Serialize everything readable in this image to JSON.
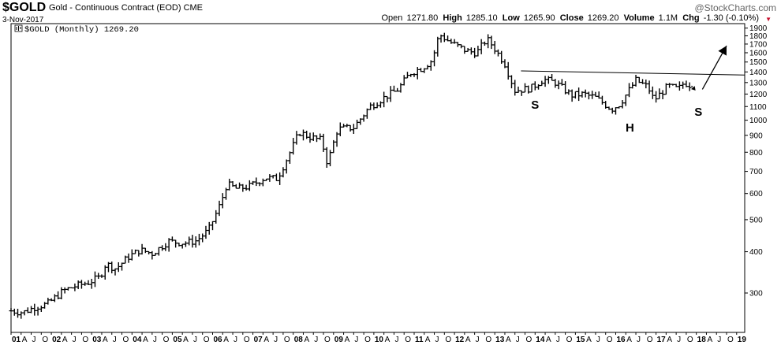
{
  "header": {
    "symbol": "$GOLD",
    "description": "Gold - Continuous Contract (EOD)",
    "exchange": "CME",
    "date": "3-Nov-2017",
    "brand": "@StockCharts.com",
    "open_label": "Open",
    "open": "1271.80",
    "high_label": "High",
    "high": "1285.10",
    "low_label": "Low",
    "low": "1265.90",
    "close_label": "Close",
    "close": "1269.20",
    "volume_label": "Volume",
    "volume": "1.1M",
    "chg_label": "Chg",
    "chg": "-1.30 (-0.10%)",
    "chg_arrow_color": "#c8102e"
  },
  "chart_data": {
    "type": "ohlc",
    "legend": "$GOLD (Monthly) 1269.20",
    "scale": "log",
    "ylim": [
      228,
      1960
    ],
    "yticks": [
      300,
      400,
      500,
      600,
      700,
      800,
      900,
      1000,
      1100,
      1200,
      1300,
      1400,
      1500,
      1600,
      1700,
      1800,
      1900
    ],
    "xlim": [
      2001.0,
      2019.2
    ],
    "x_tick_labels": [
      {
        "x": 2001.0,
        "label": "01"
      },
      {
        "x": 2001.25,
        "label": "A"
      },
      {
        "x": 2001.5,
        "label": "J"
      },
      {
        "x": 2001.75,
        "label": "O"
      },
      {
        "x": 2002.0,
        "label": "02"
      },
      {
        "x": 2002.25,
        "label": "A"
      },
      {
        "x": 2002.5,
        "label": "J"
      },
      {
        "x": 2002.75,
        "label": "O"
      },
      {
        "x": 2003.0,
        "label": "03"
      },
      {
        "x": 2003.25,
        "label": "A"
      },
      {
        "x": 2003.5,
        "label": "J"
      },
      {
        "x": 2003.75,
        "label": "O"
      },
      {
        "x": 2004.0,
        "label": "04"
      },
      {
        "x": 2004.25,
        "label": "A"
      },
      {
        "x": 2004.5,
        "label": "J"
      },
      {
        "x": 2004.75,
        "label": "O"
      },
      {
        "x": 2005.0,
        "label": "05"
      },
      {
        "x": 2005.25,
        "label": "A"
      },
      {
        "x": 2005.5,
        "label": "J"
      },
      {
        "x": 2005.75,
        "label": "O"
      },
      {
        "x": 2006.0,
        "label": "06"
      },
      {
        "x": 2006.25,
        "label": "A"
      },
      {
        "x": 2006.5,
        "label": "J"
      },
      {
        "x": 2006.75,
        "label": "O"
      },
      {
        "x": 2007.0,
        "label": "07"
      },
      {
        "x": 2007.25,
        "label": "A"
      },
      {
        "x": 2007.5,
        "label": "J"
      },
      {
        "x": 2007.75,
        "label": "O"
      },
      {
        "x": 2008.0,
        "label": "08"
      },
      {
        "x": 2008.25,
        "label": "A"
      },
      {
        "x": 2008.5,
        "label": "J"
      },
      {
        "x": 2008.75,
        "label": "O"
      },
      {
        "x": 2009.0,
        "label": "09"
      },
      {
        "x": 2009.25,
        "label": "A"
      },
      {
        "x": 2009.5,
        "label": "J"
      },
      {
        "x": 2009.75,
        "label": "O"
      },
      {
        "x": 2010.0,
        "label": "10"
      },
      {
        "x": 2010.25,
        "label": "A"
      },
      {
        "x": 2010.5,
        "label": "J"
      },
      {
        "x": 2010.75,
        "label": "O"
      },
      {
        "x": 2011.0,
        "label": "11"
      },
      {
        "x": 2011.25,
        "label": "A"
      },
      {
        "x": 2011.5,
        "label": "J"
      },
      {
        "x": 2011.75,
        "label": "O"
      },
      {
        "x": 2012.0,
        "label": "12"
      },
      {
        "x": 2012.25,
        "label": "A"
      },
      {
        "x": 2012.5,
        "label": "J"
      },
      {
        "x": 2012.75,
        "label": "O"
      },
      {
        "x": 2013.0,
        "label": "13"
      },
      {
        "x": 2013.25,
        "label": "A"
      },
      {
        "x": 2013.5,
        "label": "J"
      },
      {
        "x": 2013.75,
        "label": "O"
      },
      {
        "x": 2014.0,
        "label": "14"
      },
      {
        "x": 2014.25,
        "label": "A"
      },
      {
        "x": 2014.5,
        "label": "J"
      },
      {
        "x": 2014.75,
        "label": "O"
      },
      {
        "x": 2015.0,
        "label": "15"
      },
      {
        "x": 2015.25,
        "label": "A"
      },
      {
        "x": 2015.5,
        "label": "J"
      },
      {
        "x": 2015.75,
        "label": "O"
      },
      {
        "x": 2016.0,
        "label": "16"
      },
      {
        "x": 2016.25,
        "label": "A"
      },
      {
        "x": 2016.5,
        "label": "J"
      },
      {
        "x": 2016.75,
        "label": "O"
      },
      {
        "x": 2017.0,
        "label": "17"
      },
      {
        "x": 2017.25,
        "label": "A"
      },
      {
        "x": 2017.5,
        "label": "J"
      },
      {
        "x": 2017.75,
        "label": "O"
      },
      {
        "x": 2018.0,
        "label": "18"
      },
      {
        "x": 2018.25,
        "label": "A"
      },
      {
        "x": 2018.5,
        "label": "J"
      },
      {
        "x": 2018.75,
        "label": "O"
      },
      {
        "x": 2019.0,
        "label": "19"
      }
    ],
    "anchors": [
      [
        2001.0,
        265
      ],
      [
        2001.3,
        262
      ],
      [
        2001.6,
        272
      ],
      [
        2001.9,
        278
      ],
      [
        2002.3,
        305
      ],
      [
        2002.6,
        315
      ],
      [
        2002.9,
        322
      ],
      [
        2003.2,
        335
      ],
      [
        2003.35,
        368
      ],
      [
        2003.6,
        355
      ],
      [
        2003.9,
        385
      ],
      [
        2004.2,
        405
      ],
      [
        2004.5,
        395
      ],
      [
        2004.9,
        430
      ],
      [
        2005.3,
        425
      ],
      [
        2005.6,
        432
      ],
      [
        2005.9,
        465
      ],
      [
        2006.2,
        560
      ],
      [
        2006.35,
        640
      ],
      [
        2006.6,
        620
      ],
      [
        2006.9,
        630
      ],
      [
        2007.3,
        670
      ],
      [
        2007.6,
        665
      ],
      [
        2007.9,
        790
      ],
      [
        2008.15,
        920
      ],
      [
        2008.4,
        890
      ],
      [
        2008.7,
        870
      ],
      [
        2008.85,
        740
      ],
      [
        2009.1,
        940
      ],
      [
        2009.5,
        950
      ],
      [
        2009.9,
        1100
      ],
      [
        2010.3,
        1180
      ],
      [
        2010.6,
        1240
      ],
      [
        2010.9,
        1390
      ],
      [
        2011.2,
        1440
      ],
      [
        2011.45,
        1520
      ],
      [
        2011.62,
        1820
      ],
      [
        2011.9,
        1720
      ],
      [
        2012.3,
        1620
      ],
      [
        2012.55,
        1600
      ],
      [
        2012.8,
        1760
      ],
      [
        2012.95,
        1680
      ],
      [
        2013.25,
        1480
      ],
      [
        2013.5,
        1230
      ],
      [
        2013.9,
        1250
      ],
      [
        2014.2,
        1330
      ],
      [
        2014.5,
        1300
      ],
      [
        2014.9,
        1190
      ],
      [
        2015.2,
        1200
      ],
      [
        2015.5,
        1170
      ],
      [
        2015.9,
        1080
      ],
      [
        2016.1,
        1120
      ],
      [
        2016.5,
        1320
      ],
      [
        2016.8,
        1260
      ],
      [
        2016.95,
        1150
      ],
      [
        2017.3,
        1270
      ],
      [
        2017.55,
        1240
      ],
      [
        2017.7,
        1300
      ],
      [
        2017.85,
        1275
      ]
    ],
    "neckline": [
      [
        2013.65,
        1410
      ],
      [
        2019.2,
        1370
      ]
    ],
    "arrow": [
      [
        2018.15,
        1240
      ],
      [
        2018.75,
        1680
      ]
    ],
    "dotted_arrow": [
      [
        2017.88,
        1270
      ],
      [
        2017.98,
        1230
      ]
    ],
    "annotations": [
      {
        "text": "S",
        "x": 2014.0,
        "y": 1085
      },
      {
        "text": "H",
        "x": 2016.35,
        "y": 925
      },
      {
        "text": "S",
        "x": 2018.05,
        "y": 1030
      }
    ]
  }
}
